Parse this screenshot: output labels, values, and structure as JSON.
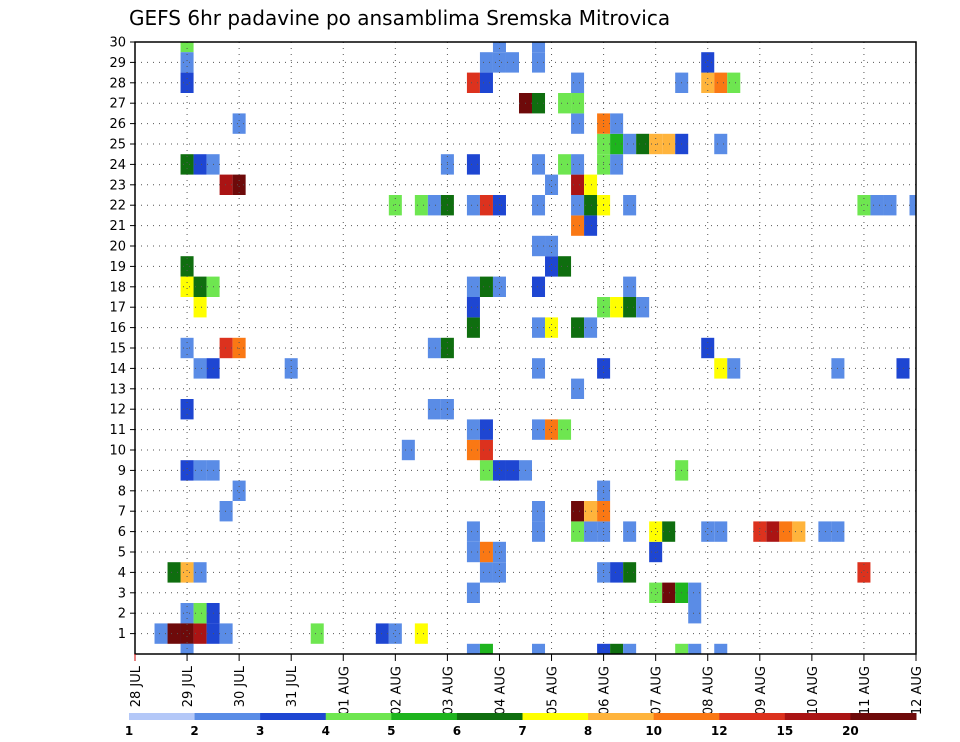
{
  "chart_data": {
    "type": "heatmap",
    "title": "GEFS 6hr padavine po ansamblima Sremska Mitrovica",
    "xlabel": "",
    "ylabel": "",
    "x_ticks": [
      "28 JUL",
      "29 JUL",
      "30 JUL",
      "31 JUL",
      "01 AUG",
      "02 AUG",
      "03 AUG",
      "04 AUG",
      "05 AUG",
      "06 AUG",
      "07 AUG",
      "08 AUG",
      "09 AUG",
      "10 AUG",
      "11 AUG",
      "12 AUG"
    ],
    "y_ticks": [
      "1",
      "2",
      "3",
      "4",
      "5",
      "6",
      "7",
      "8",
      "9",
      "10",
      "11",
      "12",
      "13",
      "14",
      "15",
      "16",
      "17",
      "18",
      "19",
      "20",
      "21",
      "22",
      "23",
      "24",
      "25",
      "26",
      "27",
      "28",
      "29",
      "30"
    ],
    "x_range_days": [
      0,
      15
    ],
    "y_range": [
      0,
      30
    ],
    "step_days": 0.25,
    "grid": true,
    "colorbar": {
      "levels": [
        "1",
        "2",
        "3",
        "4",
        "5",
        "6",
        "7",
        "8",
        "10",
        "12",
        "15",
        "20"
      ],
      "colors": [
        "#b4c8f8",
        "#5a8ce6",
        "#1e46d2",
        "#6ee650",
        "#1eb41e",
        "#0f6e0f",
        "#ffff00",
        "#ffb43c",
        "#fa7814",
        "#dc321e",
        "#aa1414",
        "#6e0a0a"
      ]
    },
    "points": [
      [
        1,
        1,
        2
      ],
      [
        1,
        30,
        3
      ],
      [
        1,
        29,
        1
      ],
      [
        1,
        28,
        2
      ],
      [
        1,
        24,
        5
      ],
      [
        1,
        19,
        5
      ],
      [
        1,
        18,
        6
      ],
      [
        1,
        15,
        1
      ],
      [
        1,
        12,
        2
      ],
      [
        1,
        9,
        2
      ],
      [
        1,
        4,
        7
      ],
      [
        1,
        2,
        1
      ],
      [
        1,
        1,
        11
      ],
      [
        1,
        0,
        1
      ],
      [
        0.75,
        4,
        5
      ],
      [
        0.5,
        1,
        1
      ],
      [
        0.75,
        1,
        11
      ],
      [
        1.25,
        1,
        10
      ],
      [
        1.25,
        2,
        3
      ],
      [
        1.25,
        4,
        1
      ],
      [
        1.25,
        9,
        1
      ],
      [
        1.25,
        14,
        1
      ],
      [
        1.25,
        17,
        6
      ],
      [
        1.25,
        18,
        5
      ],
      [
        1.25,
        24,
        2
      ],
      [
        1.5,
        1,
        2
      ],
      [
        1.5,
        2,
        2
      ],
      [
        1.5,
        9,
        1
      ],
      [
        1.5,
        14,
        2
      ],
      [
        1.5,
        18,
        3
      ],
      [
        1.5,
        24,
        1
      ],
      [
        1.75,
        1,
        1
      ],
      [
        1.75,
        7,
        1
      ],
      [
        1.75,
        15,
        9
      ],
      [
        1.75,
        23,
        10
      ],
      [
        2,
        8,
        1
      ],
      [
        2,
        15,
        8
      ],
      [
        2,
        23,
        11
      ],
      [
        2,
        26,
        1
      ],
      [
        3,
        14,
        1
      ],
      [
        3.5,
        1,
        3
      ],
      [
        4.75,
        1,
        2
      ],
      [
        5,
        1,
        1
      ],
      [
        5,
        22,
        3
      ],
      [
        5.25,
        10,
        1
      ],
      [
        5.5,
        1,
        6
      ],
      [
        5.5,
        22,
        3
      ],
      [
        5.75,
        12,
        1
      ],
      [
        5.75,
        15,
        1
      ],
      [
        5.75,
        22,
        1
      ],
      [
        6,
        12,
        1
      ],
      [
        6,
        15,
        5
      ],
      [
        6,
        22,
        5
      ],
      [
        6,
        24,
        1
      ],
      [
        6.5,
        0,
        1
      ],
      [
        6.5,
        3,
        1
      ],
      [
        6.5,
        5,
        1
      ],
      [
        6.5,
        6,
        1
      ],
      [
        6.5,
        10,
        8
      ],
      [
        6.5,
        11,
        1
      ],
      [
        6.5,
        16,
        5
      ],
      [
        6.5,
        17,
        2
      ],
      [
        6.5,
        18,
        1
      ],
      [
        6.5,
        22,
        1
      ],
      [
        6.5,
        24,
        2
      ],
      [
        6.5,
        28,
        9
      ],
      [
        6.75,
        0,
        4
      ],
      [
        6.75,
        4,
        1
      ],
      [
        6.75,
        5,
        8
      ],
      [
        6.75,
        9,
        3
      ],
      [
        6.75,
        10,
        9
      ],
      [
        6.75,
        11,
        2
      ],
      [
        6.75,
        18,
        5
      ],
      [
        6.75,
        22,
        9
      ],
      [
        6.75,
        29,
        1
      ],
      [
        6.75,
        28,
        2
      ],
      [
        7,
        4,
        1
      ],
      [
        7,
        5,
        1
      ],
      [
        7,
        9,
        2
      ],
      [
        7,
        18,
        1
      ],
      [
        7,
        22,
        2
      ],
      [
        7,
        29,
        1
      ],
      [
        7,
        30,
        1
      ],
      [
        7.25,
        9,
        2
      ],
      [
        7.25,
        29,
        1
      ],
      [
        7.5,
        9,
        1
      ],
      [
        7.5,
        27,
        11
      ],
      [
        7.75,
        0,
        1
      ],
      [
        7.75,
        6,
        1
      ],
      [
        7.75,
        7,
        1
      ],
      [
        7.75,
        11,
        1
      ],
      [
        7.75,
        14,
        1
      ],
      [
        7.75,
        16,
        1
      ],
      [
        7.75,
        18,
        2
      ],
      [
        7.75,
        20,
        1
      ],
      [
        7.75,
        22,
        1
      ],
      [
        7.75,
        24,
        1
      ],
      [
        7.75,
        27,
        5
      ],
      [
        7.75,
        29,
        1
      ],
      [
        7.75,
        30,
        1
      ],
      [
        8,
        11,
        8
      ],
      [
        8,
        16,
        6
      ],
      [
        8,
        19,
        2
      ],
      [
        8,
        20,
        1
      ],
      [
        8,
        23,
        1
      ],
      [
        8.25,
        11,
        3
      ],
      [
        8.25,
        19,
        5
      ],
      [
        8.25,
        24,
        3
      ],
      [
        8.25,
        27,
        3
      ],
      [
        8.5,
        6,
        3
      ],
      [
        8.5,
        7,
        11
      ],
      [
        8.5,
        13,
        1
      ],
      [
        8.5,
        16,
        5
      ],
      [
        8.5,
        21,
        8
      ],
      [
        8.5,
        22,
        1
      ],
      [
        8.5,
        23,
        10
      ],
      [
        8.5,
        24,
        1
      ],
      [
        8.5,
        26,
        1
      ],
      [
        8.5,
        27,
        3
      ],
      [
        8.5,
        28,
        1
      ],
      [
        8.75,
        6,
        1
      ],
      [
        8.75,
        7,
        7
      ],
      [
        8.75,
        16,
        1
      ],
      [
        8.75,
        21,
        2
      ],
      [
        8.75,
        22,
        5
      ],
      [
        8.75,
        23,
        6
      ],
      [
        9,
        0,
        2
      ],
      [
        9,
        4,
        1
      ],
      [
        9,
        6,
        1
      ],
      [
        9,
        7,
        8
      ],
      [
        9,
        8,
        1
      ],
      [
        9,
        14,
        2
      ],
      [
        9,
        17,
        3
      ],
      [
        9,
        22,
        6
      ],
      [
        9,
        24,
        3
      ],
      [
        9,
        25,
        3
      ],
      [
        9,
        26,
        8
      ],
      [
        9.25,
        0,
        5
      ],
      [
        9.25,
        4,
        2
      ],
      [
        9.25,
        17,
        6
      ],
      [
        9.25,
        24,
        1
      ],
      [
        9.25,
        25,
        4
      ],
      [
        9.25,
        26,
        1
      ],
      [
        9.5,
        0,
        1
      ],
      [
        9.5,
        4,
        5
      ],
      [
        9.5,
        6,
        1
      ],
      [
        9.5,
        17,
        5
      ],
      [
        9.5,
        18,
        1
      ],
      [
        9.5,
        22,
        1
      ],
      [
        9.5,
        25,
        1
      ],
      [
        9.75,
        25,
        5
      ],
      [
        9.75,
        17,
        1
      ],
      [
        10,
        3,
        3
      ],
      [
        10,
        5,
        2
      ],
      [
        10,
        6,
        6
      ],
      [
        10,
        25,
        7
      ],
      [
        10.25,
        3,
        11
      ],
      [
        10.25,
        6,
        5
      ],
      [
        10.25,
        25,
        7
      ],
      [
        10.5,
        0,
        3
      ],
      [
        10.5,
        3,
        4
      ],
      [
        10.5,
        9,
        3
      ],
      [
        10.5,
        25,
        2
      ],
      [
        10.5,
        28,
        1
      ],
      [
        10.75,
        0,
        1
      ],
      [
        10.75,
        2,
        1
      ],
      [
        10.75,
        3,
        1
      ],
      [
        11,
        6,
        1
      ],
      [
        11,
        15,
        2
      ],
      [
        11,
        28,
        7
      ],
      [
        11,
        29,
        2
      ],
      [
        11.25,
        0,
        1
      ],
      [
        11.25,
        6,
        1
      ],
      [
        11.25,
        14,
        6
      ],
      [
        11.25,
        25,
        1
      ],
      [
        11.25,
        28,
        8
      ],
      [
        11.5,
        14,
        1
      ],
      [
        11.5,
        28,
        3
      ],
      [
        12,
        6,
        9
      ],
      [
        12.25,
        6,
        10
      ],
      [
        12.5,
        6,
        8
      ],
      [
        12.75,
        6,
        7
      ],
      [
        13.25,
        6,
        1
      ],
      [
        13.5,
        6,
        1
      ],
      [
        13.5,
        14,
        1
      ],
      [
        14,
        4,
        9
      ],
      [
        14,
        22,
        3
      ],
      [
        14.25,
        22,
        1
      ],
      [
        14.5,
        22,
        1
      ],
      [
        14.75,
        14,
        2
      ],
      [
        15,
        22,
        1
      ]
    ]
  }
}
